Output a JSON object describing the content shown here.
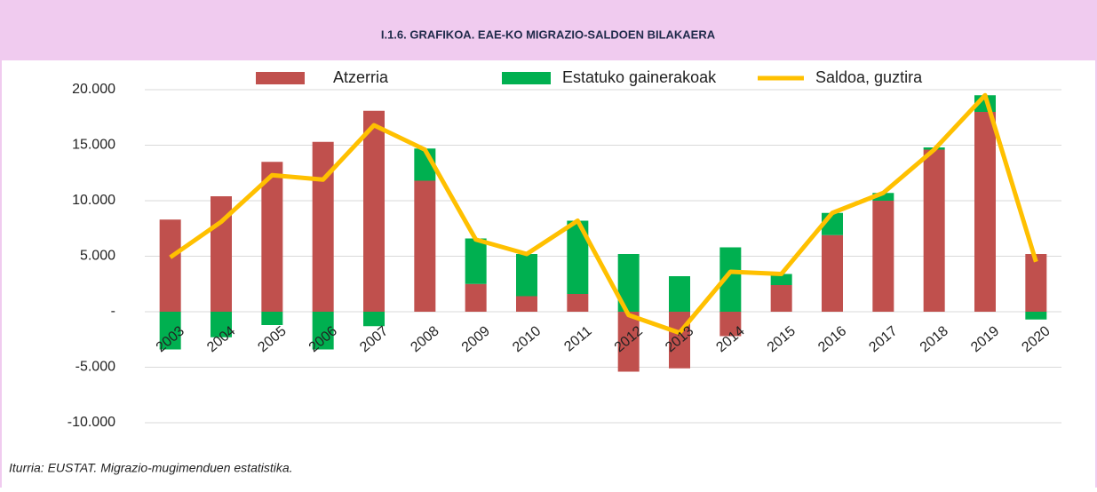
{
  "chart_data": {
    "type": "stacked_bar_line",
    "title": "I.1.6. GRAFIKOA. EAE-KO MIGRAZIO-SALDOEN BILAKAERA",
    "source": "Iturria:  EUSTAT. Migrazio-mugimenduen estatistika.",
    "categories": [
      "2003",
      "2004",
      "2005",
      "2006",
      "2007",
      "2008",
      "2009",
      "2010",
      "2011",
      "2012",
      "2013",
      "2014",
      "2015",
      "2016",
      "2017",
      "2018",
      "2019",
      "2020"
    ],
    "series": [
      {
        "name": "Atzerria",
        "color": "#c0504d",
        "kind": "bar",
        "values": [
          8300,
          10400,
          13500,
          15300,
          18100,
          11800,
          2500,
          1400,
          1600,
          -5400,
          -5100,
          -2200,
          2400,
          6900,
          10000,
          14600,
          18000,
          5200
        ]
      },
      {
        "name": "Estatuko gainerakoak",
        "color": "#00b050",
        "kind": "bar",
        "values": [
          -3400,
          -2300,
          -1200,
          -3400,
          -1300,
          2900,
          4100,
          3800,
          6600,
          5200,
          3200,
          5800,
          1000,
          2000,
          700,
          200,
          1500,
          -700
        ]
      },
      {
        "name": "Saldoa, guztira",
        "color": "#ffc000",
        "kind": "line",
        "values": [
          4900,
          8100,
          12300,
          11900,
          16800,
          14600,
          6500,
          5200,
          8200,
          -300,
          -1900,
          3600,
          3400,
          8900,
          10700,
          14600,
          19500,
          4500
        ]
      }
    ],
    "ylim": [
      -10000,
      20000
    ],
    "yticks": [
      {
        "value": -10000,
        "label": "-10.000"
      },
      {
        "value": -5000,
        "label": "-5.000"
      },
      {
        "value": 0,
        "label": "-"
      },
      {
        "value": 5000,
        "label": "5.000"
      },
      {
        "value": 10000,
        "label": "10.000"
      },
      {
        "value": 15000,
        "label": "15.000"
      },
      {
        "value": 20000,
        "label": "20.000"
      }
    ],
    "grid": true
  }
}
